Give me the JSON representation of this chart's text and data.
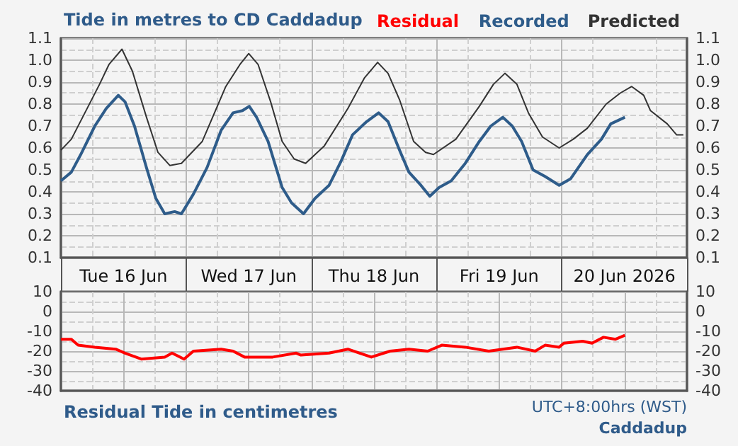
{
  "chart_data": [
    {
      "type": "line",
      "title": "Tide in metres to CD Caddadup",
      "legend": "top right",
      "grid": true,
      "marker": "none",
      "line_style": "solid",
      "xlim": [
        "2026-06-16T00:00",
        "2026-06-21T00:00"
      ],
      "xticks": [
        {
          "value": "2026-06-16T00:00",
          "label": null
        },
        {
          "value": "2026-06-16T12:00",
          "label": "Tue 16 Jun"
        },
        {
          "value": "2026-06-17T00:00",
          "label": null
        },
        {
          "value": "2026-06-17T12:00",
          "label": "Wed 17 Jun"
        },
        {
          "value": "2026-06-18T00:00",
          "label": null
        },
        {
          "value": "2026-06-18T12:00",
          "label": "Thu 18 Jun"
        },
        {
          "value": "2026-06-19T00:00",
          "label": null
        },
        {
          "value": "2026-06-19T12:00",
          "label": "Fri 19 Jun"
        },
        {
          "value": "2026-06-20T00:00",
          "label": null
        },
        {
          "value": "2026-06-20T12:00",
          "label": "20 Jun 2026"
        },
        {
          "value": "2026-06-21T00:00",
          "label": null
        }
      ],
      "ylim": [
        0.1,
        1.1
      ],
      "yticks": [
        0.1,
        0.2,
        0.3,
        0.4,
        0.5,
        0.6,
        0.7,
        0.8,
        0.9,
        {
          "value": 1.0,
          "label": "1.0"
        },
        1.1
      ],
      "y2lim": [
        0.1,
        1.1
      ],
      "y2ticks": [
        0.1,
        0.2,
        0.3,
        0.4,
        0.5,
        0.6,
        0.7,
        0.8,
        0.9,
        {
          "value": 1.0,
          "label": "1.0"
        },
        1.1
      ],
      "series": [
        {
          "name": "Predicted",
          "color": "#333333",
          "x": [
            "2026-06-16T00:00",
            "2026-06-16T02:00",
            "2026-06-16T07:24",
            "2026-06-16T09:12",
            "2026-06-16T11:42",
            "2026-06-16T13:42",
            "2026-06-16T16:24",
            "2026-06-16T18:36",
            "2026-06-16T20:54",
            "2026-06-16T23:06",
            "2026-06-17T03:06",
            "2026-06-17T07:36",
            "2026-06-17T10:18",
            "2026-06-17T12:00",
            "2026-06-17T13:48",
            "2026-06-17T16:12",
            "2026-06-17T18:24",
            "2026-06-17T20:42",
            "2026-06-17T22:54",
            "2026-06-18T02:30",
            "2026-06-18T07:00",
            "2026-06-18T10:12",
            "2026-06-18T12:42",
            "2026-06-18T14:42",
            "2026-06-18T16:54",
            "2026-06-18T19:36",
            "2026-06-18T21:54",
            "2026-06-18T23:24",
            "2026-06-19T03:42",
            "2026-06-19T08:12",
            "2026-06-19T10:54",
            "2026-06-19T13:06",
            "2026-06-19T15:24",
            "2026-06-19T17:36",
            "2026-06-19T20:18",
            "2026-06-19T23:30",
            "2026-06-20T02:12",
            "2026-06-20T04:54",
            "2026-06-20T08:30",
            "2026-06-20T11:12",
            "2026-06-20T13:24",
            "2026-06-20T15:42",
            "2026-06-20T17:00",
            "2026-06-20T20:12",
            "2026-06-20T22:00",
            "2026-06-20T23:18"
          ],
          "values": [
            0.59,
            0.64,
            0.89,
            0.98,
            1.05,
            0.95,
            0.74,
            0.58,
            0.52,
            0.53,
            0.63,
            0.88,
            0.98,
            1.03,
            0.98,
            0.81,
            0.63,
            0.55,
            0.53,
            0.61,
            0.78,
            0.92,
            0.99,
            0.94,
            0.82,
            0.63,
            0.58,
            0.57,
            0.64,
            0.79,
            0.89,
            0.94,
            0.89,
            0.76,
            0.65,
            0.6,
            0.64,
            0.69,
            0.8,
            0.85,
            0.88,
            0.84,
            0.77,
            0.71,
            0.66,
            0.66
          ]
        },
        {
          "name": "Recorded",
          "color": "#2e5c8a",
          "x": [
            "2026-06-16T00:00",
            "2026-06-16T02:00",
            "2026-06-16T03:48",
            "2026-06-16T06:30",
            "2026-06-16T08:42",
            "2026-06-16T11:00",
            "2026-06-16T12:18",
            "2026-06-16T14:06",
            "2026-06-16T16:24",
            "2026-06-16T18:12",
            "2026-06-16T19:54",
            "2026-06-16T21:48",
            "2026-06-16T23:06",
            "2026-06-17T01:24",
            "2026-06-17T04:00",
            "2026-06-17T06:42",
            "2026-06-17T09:00",
            "2026-06-17T10:48",
            "2026-06-17T12:06",
            "2026-06-17T13:30",
            "2026-06-17T15:42",
            "2026-06-17T18:24",
            "2026-06-17T20:12",
            "2026-06-17T22:30",
            "2026-06-18T00:42",
            "2026-06-18T03:24",
            "2026-06-18T05:42",
            "2026-06-18T07:54",
            "2026-06-18T10:36",
            "2026-06-18T12:54",
            "2026-06-18T14:42",
            "2026-06-18T16:54",
            "2026-06-18T18:42",
            "2026-06-18T21:00",
            "2026-06-18T22:42",
            "2026-06-19T00:30",
            "2026-06-19T02:48",
            "2026-06-19T05:30",
            "2026-06-19T08:12",
            "2026-06-19T10:24",
            "2026-06-19T12:42",
            "2026-06-19T14:30",
            "2026-06-19T16:18",
            "2026-06-19T18:30",
            "2026-06-19T20:48",
            "2026-06-19T23:30",
            "2026-06-20T01:42",
            "2026-06-20T04:54",
            "2026-06-20T07:36",
            "2026-06-20T09:24",
            "2026-06-20T12:06"
          ],
          "values": [
            0.45,
            0.49,
            0.57,
            0.7,
            0.78,
            0.84,
            0.81,
            0.7,
            0.51,
            0.37,
            0.3,
            0.31,
            0.3,
            0.39,
            0.51,
            0.68,
            0.76,
            0.77,
            0.79,
            0.74,
            0.63,
            0.42,
            0.35,
            0.3,
            0.37,
            0.43,
            0.54,
            0.66,
            0.72,
            0.76,
            0.72,
            0.59,
            0.49,
            0.43,
            0.38,
            0.42,
            0.45,
            0.53,
            0.63,
            0.7,
            0.74,
            0.7,
            0.63,
            0.5,
            0.47,
            0.43,
            0.46,
            0.57,
            0.64,
            0.71,
            0.74
          ]
        }
      ]
    },
    {
      "type": "line",
      "title": "Residual Tide in centimetres",
      "legend": "top right",
      "grid": true,
      "marker": "none",
      "line_style": "solid",
      "tick_labels": "y",
      "annotations": [
        "UTC+8:00hrs (WST)",
        "Caddadup"
      ],
      "xlim": [
        "2026-06-16T00:00",
        "2026-06-21T00:00"
      ],
      "xticks": [
        {
          "value": "2026-06-16T00:00",
          "label": null
        },
        {
          "value": "2026-06-16T12:00",
          "label": null
        },
        {
          "value": "2026-06-17T00:00",
          "label": null
        },
        {
          "value": "2026-06-17T12:00",
          "label": null
        },
        {
          "value": "2026-06-18T00:00",
          "label": null
        },
        {
          "value": "2026-06-18T12:00",
          "label": null
        },
        {
          "value": "2026-06-19T00:00",
          "label": null
        },
        {
          "value": "2026-06-19T12:00",
          "label": null
        },
        {
          "value": "2026-06-20T00:00",
          "label": null
        },
        {
          "value": "2026-06-20T12:00",
          "label": null
        },
        {
          "value": "2026-06-21T00:00",
          "label": null
        }
      ],
      "ylim": [
        -40,
        10
      ],
      "yticks": [
        -40,
        -30,
        -20,
        -10,
        0,
        10
      ],
      "y2lim": [
        -40,
        10
      ],
      "y2ticks": [
        -40,
        -30,
        -20,
        -10,
        0,
        10
      ],
      "series": [
        {
          "name": "Residual",
          "color": "#ff0000",
          "x": [
            "2026-06-16T00:00",
            "2026-06-16T02:00",
            "2026-06-16T03:18",
            "2026-06-16T06:30",
            "2026-06-16T10:30",
            "2026-06-16T12:18",
            "2026-06-16T15:24",
            "2026-06-16T19:54",
            "2026-06-16T21:18",
            "2026-06-16T23:36",
            "2026-06-17T01:24",
            "2026-06-17T06:42",
            "2026-06-17T09:00",
            "2026-06-17T11:12",
            "2026-06-17T16:36",
            "2026-06-17T21:06",
            "2026-06-17T22:00",
            "2026-06-18T03:24",
            "2026-06-18T07:00",
            "2026-06-18T11:30",
            "2026-06-18T15:06",
            "2026-06-18T18:42",
            "2026-06-18T22:18",
            "2026-06-19T01:00",
            "2026-06-19T05:30",
            "2026-06-19T10:00",
            "2026-06-19T15:24",
            "2026-06-19T18:54",
            "2026-06-19T20:48",
            "2026-06-19T23:30",
            "2026-06-20T00:24",
            "2026-06-20T04:00",
            "2026-06-20T05:48",
            "2026-06-20T08:00",
            "2026-06-20T10:18",
            "2026-06-20T12:06"
          ],
          "values": [
            -14,
            -14,
            -17,
            -18,
            -19,
            -21,
            -24,
            -23,
            -21,
            -24,
            -20,
            -19,
            -20,
            -23,
            -23,
            -21,
            -22,
            -21,
            -19,
            -23,
            -20,
            -19,
            -20,
            -17,
            -18,
            -20,
            -18,
            -20,
            -17,
            -18,
            -16,
            -15,
            -16,
            -13,
            -14,
            -12
          ]
        }
      ]
    }
  ]
}
